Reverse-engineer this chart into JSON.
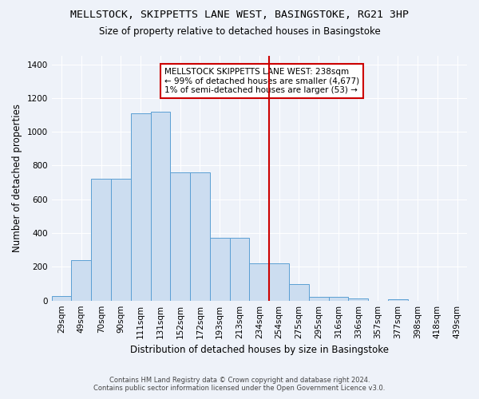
{
  "title_line1": "MELLSTOCK, SKIPPETTS LANE WEST, BASINGSTOKE, RG21 3HP",
  "title_line2": "Size of property relative to detached houses in Basingstoke",
  "xlabel": "Distribution of detached houses by size in Basingstoke",
  "ylabel": "Number of detached properties",
  "categories": [
    "29sqm",
    "49sqm",
    "70sqm",
    "90sqm",
    "111sqm",
    "131sqm",
    "152sqm",
    "172sqm",
    "193sqm",
    "213sqm",
    "234sqm",
    "254sqm",
    "275sqm",
    "295sqm",
    "316sqm",
    "336sqm",
    "357sqm",
    "377sqm",
    "398sqm",
    "418sqm",
    "439sqm"
  ],
  "values": [
    25,
    240,
    720,
    720,
    1110,
    1120,
    760,
    760,
    370,
    370,
    220,
    220,
    100,
    20,
    20,
    15,
    0,
    10,
    0,
    0,
    0
  ],
  "bar_color": "#ccddf0",
  "bar_edge_color": "#5a9fd4",
  "vline_x": 10.5,
  "vline_color": "#cc0000",
  "annotation_text": "MELLSTOCK SKIPPETTS LANE WEST: 238sqm\n← 99% of detached houses are smaller (4,677)\n1% of semi-detached houses are larger (53) →",
  "annotation_box_color": "#ffffff",
  "annotation_box_edge": "#cc0000",
  "ylim": [
    0,
    1450
  ],
  "yticks": [
    0,
    200,
    400,
    600,
    800,
    1000,
    1200,
    1400
  ],
  "bg_color": "#eef2f9",
  "footer_line1": "Contains HM Land Registry data © Crown copyright and database right 2024.",
  "footer_line2": "Contains public sector information licensed under the Open Government Licence v3.0.",
  "title_fontsize": 9.5,
  "subtitle_fontsize": 8.5,
  "xlabel_fontsize": 8.5,
  "ylabel_fontsize": 8.5,
  "tick_fontsize": 7.5,
  "footer_fontsize": 6.0
}
